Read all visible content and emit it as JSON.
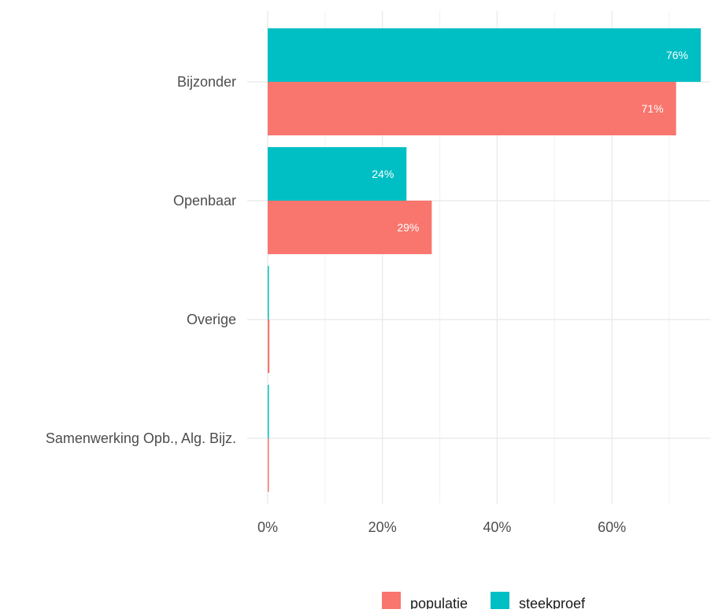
{
  "chart_data": {
    "type": "bar",
    "orientation": "horizontal",
    "categories": [
      "Bijzonder",
      "Openbaar",
      "Overige",
      "Samenwerking Opb., Alg. Bijz."
    ],
    "series": [
      {
        "name": "steekproef",
        "values": [
          0.755,
          0.242,
          0.002,
          0.002
        ],
        "labels": [
          "76%",
          "24%",
          "",
          ""
        ],
        "color": "#00BFC4"
      },
      {
        "name": "populatie",
        "values": [
          0.712,
          0.286,
          0.003,
          0.001
        ],
        "labels": [
          "71%",
          "29%",
          "",
          ""
        ],
        "color": "#F8766D"
      }
    ],
    "x_ticks": [
      {
        "value": 0,
        "label": "0%"
      },
      {
        "value": 0.2,
        "label": "20%"
      },
      {
        "value": 0.4,
        "label": "40%"
      },
      {
        "value": 0.6,
        "label": "60%"
      }
    ],
    "xlim": [
      0,
      0.755
    ],
    "grid": true,
    "legend_position": "bottom",
    "legend": [
      {
        "name": "populatie",
        "color": "#F8766D"
      },
      {
        "name": "steekproef",
        "color": "#00BFC4"
      }
    ]
  }
}
